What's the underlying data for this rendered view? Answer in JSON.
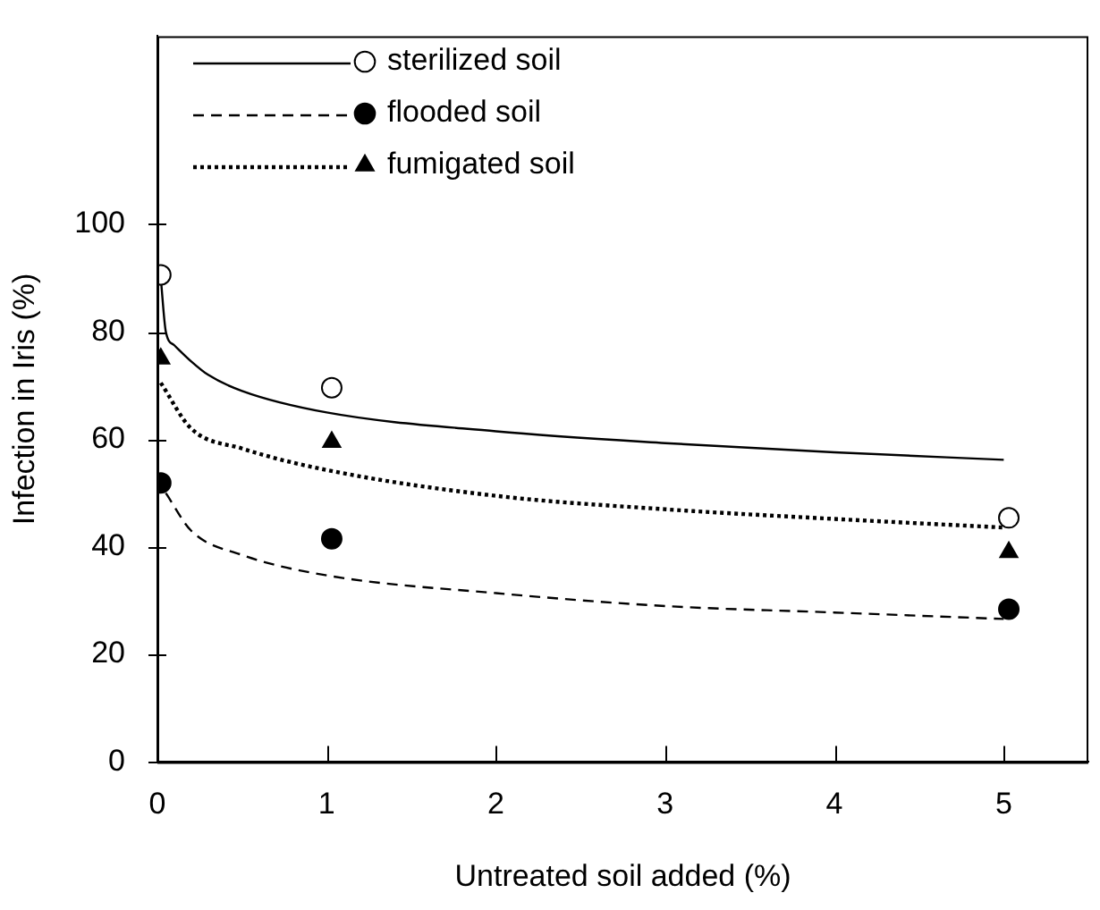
{
  "chart_data": {
    "type": "scatter",
    "xlabel": "Untreated soil added (%)",
    "ylabel": "Infection in Iris (%)",
    "xlim": [
      0,
      5.5
    ],
    "xticks": [
      0,
      1,
      2,
      3,
      4,
      5
    ],
    "ylim": [
      0,
      135
    ],
    "yticks": [
      0,
      20,
      40,
      60,
      80,
      100
    ],
    "legend": "top",
    "series": [
      {
        "name": "sterilized soil",
        "marker": "circle",
        "color": "#ffffff",
        "line_style": "solid",
        "x": [
          0.02,
          1.03,
          5.03
        ],
        "values": [
          90.6,
          69.6,
          45.4
        ]
      },
      {
        "name": "flooded soil",
        "marker": "circle",
        "color": "#000000",
        "line_style": "dashed",
        "x": [
          0.02,
          1.03,
          5.03
        ],
        "values": [
          51.9,
          41.5,
          28.4
        ]
      },
      {
        "name": "fumigated soil",
        "marker": "triangle",
        "color": "#000000",
        "line_style": "dotted",
        "x": [
          0.02,
          1.03,
          5.03
        ],
        "values": [
          75,
          59.5,
          39
        ]
      },
      {
        "type": "line",
        "color": "#000000",
        "line_style": "solid",
        "x": [
          0.02,
          0.05,
          0.1,
          0.2,
          0.3,
          0.5,
          1,
          2,
          3,
          4,
          5
        ],
        "values": [
          90,
          80,
          77.5,
          74.5,
          72,
          69,
          65,
          61.5,
          59.3,
          57.6,
          56.2
        ]
      },
      {
        "type": "line",
        "color": "#000000",
        "line_style": "dashed",
        "x": [
          0.05,
          0.2,
          0.5,
          1,
          2,
          3,
          4,
          5
        ],
        "values": [
          50,
          43,
          38.5,
          34.7,
          31.4,
          29,
          27.8,
          26.6
        ]
      },
      {
        "type": "line",
        "color": "#000000",
        "line_style": "dotted",
        "x": [
          0.02,
          0.2,
          0.5,
          1,
          2,
          3,
          4,
          5
        ],
        "values": [
          70.5,
          62,
          58.3,
          54.3,
          49.5,
          47,
          45.2,
          43.6
        ]
      }
    ]
  }
}
